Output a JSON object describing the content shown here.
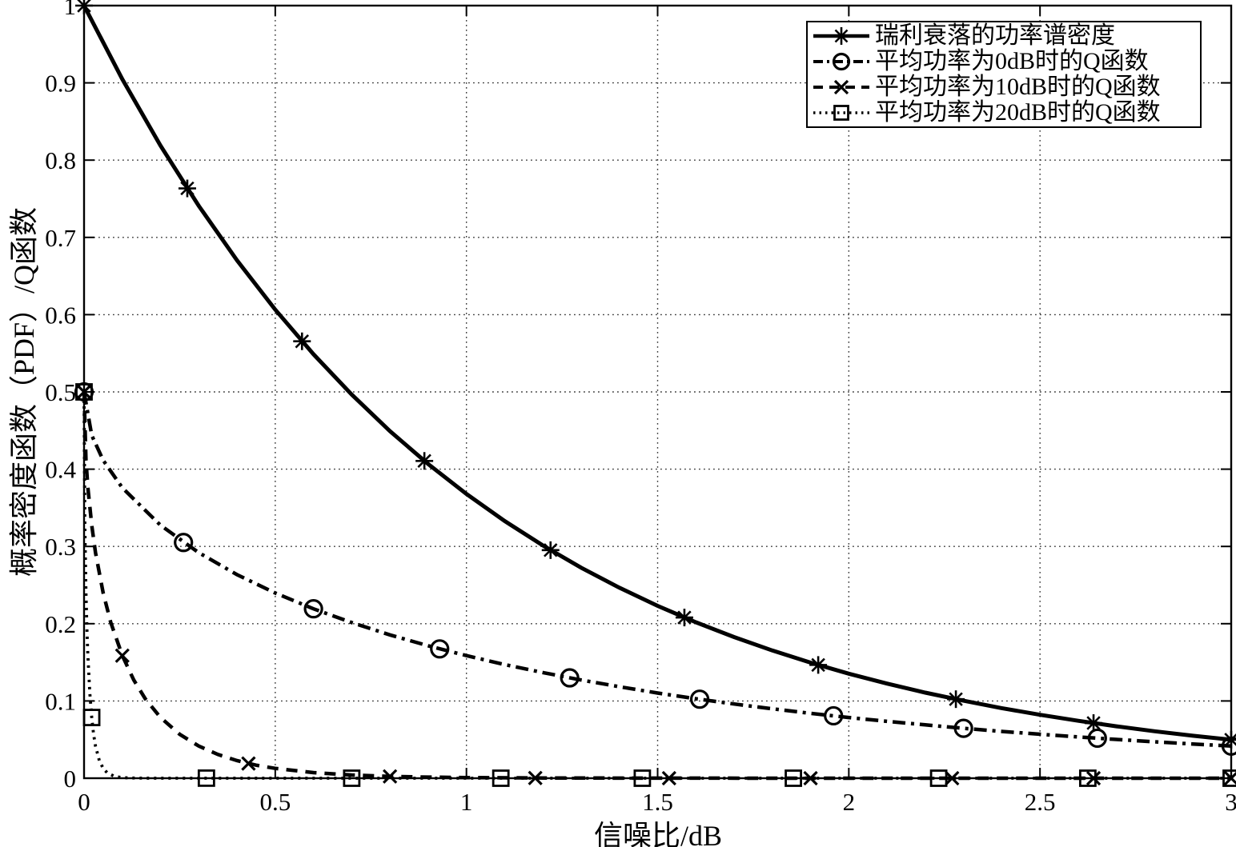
{
  "figure": {
    "background": "#ffffff",
    "axes_color": "#000000",
    "grid_color": "#3a3a3a",
    "series_color": "#000000"
  },
  "chart_data": {
    "type": "line",
    "title": "",
    "xlabel": "信噪比/dB",
    "ylabel": "概率密度函数（PDF）/Q函数",
    "xlim": [
      0,
      3
    ],
    "ylim": [
      0,
      1
    ],
    "xticks": [
      0,
      0.5,
      1,
      1.5,
      2,
      2.5,
      3
    ],
    "xtick_labels": [
      "0",
      "0.5",
      "1",
      "1.5",
      "2",
      "2.5",
      "3"
    ],
    "yticks": [
      0,
      0.1,
      0.2,
      0.3,
      0.4,
      0.5,
      0.6,
      0.7,
      0.8,
      0.9,
      1
    ],
    "ytick_labels": [
      "0",
      "0.1",
      "0.2",
      "0.3",
      "0.4",
      "0.5",
      "0.6",
      "0.7",
      "0.8",
      "0.9",
      "1"
    ],
    "grid": true,
    "legend_position": "top-right",
    "series": [
      {
        "name": "瑞利衰落的功率谱密度",
        "line_style": "solid",
        "marker": "asterisk",
        "x": [
          0,
          0.1,
          0.2,
          0.3,
          0.4,
          0.5,
          0.6,
          0.7,
          0.8,
          0.9,
          1,
          1.1,
          1.2,
          1.3,
          1.4,
          1.5,
          1.6,
          1.7,
          1.8,
          1.9,
          2,
          2.1,
          2.2,
          2.3,
          2.4,
          2.5,
          2.6,
          2.7,
          2.8,
          2.9,
          3
        ],
        "y": [
          1,
          0.9048,
          0.8187,
          0.7408,
          0.6703,
          0.6065,
          0.5488,
          0.4966,
          0.4493,
          0.4066,
          0.3679,
          0.3329,
          0.3012,
          0.2725,
          0.2466,
          0.2231,
          0.2019,
          0.1827,
          0.1653,
          0.1496,
          0.1353,
          0.1225,
          0.1108,
          0.1003,
          0.0907,
          0.0821,
          0.0743,
          0.0672,
          0.0608,
          0.055,
          0.0498
        ],
        "marker_x": [
          0,
          0.27,
          0.57,
          0.89,
          1.22,
          1.57,
          1.92,
          2.28,
          2.64,
          3
        ],
        "marker_y": [
          1,
          0.7634,
          0.5655,
          0.4107,
          0.2952,
          0.208,
          0.1466,
          0.1023,
          0.0714,
          0.0498
        ]
      },
      {
        "name": "平均功率为0dB时的Q函数",
        "line_style": "dashdot",
        "marker": "circle",
        "x": [
          0,
          0.02,
          0.05,
          0.1,
          0.2,
          0.3,
          0.4,
          0.5,
          0.6,
          0.7,
          0.8,
          0.9,
          1,
          1.1,
          1.2,
          1.3,
          1.4,
          1.5,
          1.6,
          1.7,
          1.8,
          1.9,
          2,
          2.1,
          2.2,
          2.3,
          2.4,
          2.5,
          2.6,
          2.7,
          2.8,
          2.9,
          3
        ],
        "y": [
          0.5,
          0.4438,
          0.4115,
          0.3759,
          0.3274,
          0.2919,
          0.2635,
          0.2398,
          0.2193,
          0.2014,
          0.1855,
          0.1714,
          0.1587,
          0.1471,
          0.1367,
          0.1271,
          0.1184,
          0.1103,
          0.1029,
          0.0961,
          0.0899,
          0.084,
          0.0786,
          0.0736,
          0.069,
          0.0646,
          0.0606,
          0.0569,
          0.0534,
          0.0502,
          0.0471,
          0.0443,
          0.0416
        ],
        "marker_x": [
          0,
          0.26,
          0.6,
          0.93,
          1.27,
          1.61,
          1.96,
          2.3,
          2.65,
          3
        ],
        "marker_y": [
          0.5,
          0.3051,
          0.2193,
          0.1674,
          0.1299,
          0.1023,
          0.0808,
          0.0646,
          0.0518,
          0.0416
        ]
      },
      {
        "name": "平均功率为10dB时的Q函数",
        "line_style": "dashed",
        "marker": "x",
        "x": [
          0,
          0.005,
          0.01,
          0.02,
          0.03,
          0.05,
          0.07,
          0.1,
          0.13,
          0.16,
          0.2,
          0.25,
          0.3,
          0.35,
          0.4,
          0.45,
          0.5,
          0.6,
          0.7,
          0.8,
          0.9,
          1,
          1.2,
          1.5,
          2,
          2.5,
          3
        ],
        "y": [
          0.5,
          0.4115,
          0.3759,
          0.3274,
          0.2919,
          0.2398,
          0.2014,
          0.1587,
          0.1271,
          0.1029,
          0.0786,
          0.0569,
          0.0416,
          0.0307,
          0.0228,
          0.0169,
          0.0127,
          0.0072,
          0.0041,
          0.0023,
          0.0014,
          0.0008,
          0.0003,
          0.0001,
          0,
          0,
          0
        ],
        "marker_x": [
          0,
          0.1,
          0.43,
          0.8,
          1.18,
          1.53,
          1.9,
          2.27,
          2.64,
          3
        ],
        "marker_y": [
          0.5,
          0.1587,
          0.019,
          0.0023,
          0.0003,
          0,
          0,
          0,
          0,
          0
        ]
      },
      {
        "name": "平均功率为20dB时的Q函数",
        "line_style": "dotted",
        "marker": "square",
        "x": [
          0,
          0.002,
          0.005,
          0.008,
          0.01,
          0.015,
          0.02,
          0.025,
          0.03,
          0.04,
          0.05,
          0.06,
          0.08,
          0.1,
          0.12,
          0.15,
          0.2,
          0.3,
          0.5,
          1,
          2,
          3
        ],
        "y": [
          0.5,
          0.3274,
          0.2398,
          0.1855,
          0.1587,
          0.1103,
          0.0786,
          0.0569,
          0.0416,
          0.0228,
          0.0127,
          0.0072,
          0.0023,
          0.0008,
          0.0003,
          0.0001,
          0,
          0,
          0,
          0,
          0,
          0
        ],
        "marker_x": [
          0,
          0.02,
          0.32,
          0.7,
          1.09,
          1.46,
          1.855,
          2.235,
          2.625,
          3
        ],
        "marker_y": [
          0.5,
          0.0786,
          0.0001,
          0,
          0,
          0,
          0,
          0,
          0,
          0
        ]
      }
    ]
  }
}
